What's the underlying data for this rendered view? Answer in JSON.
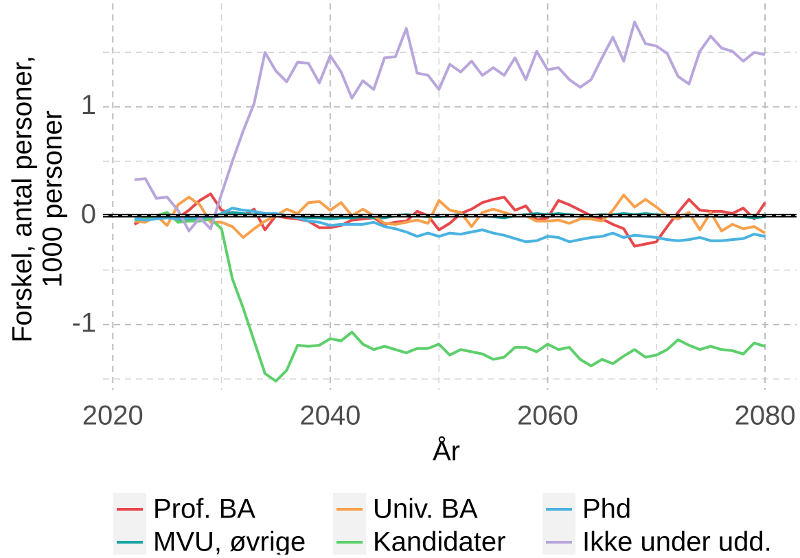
{
  "chart_data": {
    "type": "line",
    "xlabel": "År",
    "ylabel": [
      "Forskel, antal personer,",
      "1000 personer"
    ],
    "x": [
      2022,
      2023,
      2024,
      2025,
      2026,
      2027,
      2028,
      2029,
      2030,
      2031,
      2032,
      2033,
      2034,
      2035,
      2036,
      2037,
      2038,
      2039,
      2040,
      2041,
      2042,
      2043,
      2044,
      2045,
      2046,
      2047,
      2048,
      2049,
      2050,
      2051,
      2052,
      2053,
      2054,
      2055,
      2056,
      2057,
      2058,
      2059,
      2060,
      2061,
      2062,
      2063,
      2064,
      2065,
      2066,
      2067,
      2068,
      2069,
      2070,
      2071,
      2072,
      2073,
      2074,
      2075,
      2076,
      2077,
      2078,
      2079,
      2080
    ],
    "xlim": [
      2019.1,
      2082.9
    ],
    "xticks": [
      2020,
      2040,
      2060,
      2080
    ],
    "xminorticks": [
      2030,
      2050,
      2070
    ],
    "ylim": [
      -1.6,
      1.95
    ],
    "yticks": [
      -1,
      0,
      1
    ],
    "yminorticks": [
      -1.5,
      -0.5,
      0.5,
      1.5
    ],
    "hline": 0,
    "grid": true,
    "legend": "bottom",
    "series": [
      {
        "name": "Prof. BA",
        "color": "#e8484b",
        "values": [
          -0.08,
          -0.02,
          -0.02,
          0.02,
          -0.02,
          0.05,
          0.14,
          0.2,
          0.05,
          0.02,
          0.0,
          0.06,
          -0.13,
          0.0,
          -0.02,
          -0.03,
          -0.05,
          -0.11,
          -0.11,
          -0.09,
          -0.04,
          -0.03,
          -0.02,
          -0.08,
          -0.06,
          -0.05,
          0.04,
          0.0,
          -0.13,
          -0.07,
          0.02,
          0.06,
          0.12,
          0.15,
          0.17,
          0.05,
          0.09,
          -0.04,
          -0.02,
          0.14,
          0.1,
          0.05,
          0.0,
          -0.03,
          -0.08,
          -0.12,
          -0.28,
          -0.26,
          -0.24,
          -0.1,
          0.03,
          0.15,
          0.05,
          0.04,
          0.04,
          0.02,
          0.07,
          -0.03,
          0.12
        ]
      },
      {
        "name": "MVU, øvrige",
        "color": "#1aa5a5",
        "values": [
          -0.03,
          -0.03,
          -0.02,
          -0.01,
          -0.04,
          -0.03,
          -0.02,
          -0.02,
          0.0,
          0.03,
          0.02,
          0.01,
          0.0,
          0.01,
          0.0,
          -0.01,
          -0.02,
          -0.02,
          -0.03,
          -0.02,
          -0.02,
          -0.01,
          -0.02,
          -0.02,
          0.0,
          0.01,
          0.0,
          -0.01,
          -0.01,
          0.0,
          0.01,
          0.0,
          0.0,
          -0.01,
          -0.02,
          0.0,
          0.01,
          0.02,
          0.01,
          0.02,
          0.01,
          0.0,
          0.0,
          0.01,
          0.01,
          0.02,
          0.01,
          0.02,
          0.01,
          0.0,
          0.0,
          0.01,
          0.0,
          0.0,
          -0.01,
          0.0,
          -0.01,
          -0.02,
          -0.01
        ]
      },
      {
        "name": "Univ. BA",
        "color": "#f8a04c",
        "values": [
          -0.05,
          -0.06,
          0.0,
          -0.09,
          0.1,
          0.17,
          0.1,
          -0.06,
          -0.06,
          -0.1,
          -0.2,
          -0.12,
          -0.05,
          0.0,
          0.06,
          0.02,
          0.12,
          0.13,
          0.05,
          0.12,
          0.0,
          0.06,
          0.0,
          -0.07,
          -0.08,
          -0.06,
          -0.04,
          -0.07,
          0.14,
          0.05,
          0.03,
          -0.1,
          0.03,
          0.06,
          0.03,
          0.0,
          0.0,
          -0.05,
          -0.05,
          -0.04,
          -0.07,
          -0.03,
          -0.03,
          -0.05,
          0.05,
          0.19,
          0.08,
          0.15,
          0.08,
          0.0,
          -0.03,
          0.03,
          -0.13,
          0.03,
          -0.14,
          -0.08,
          -0.12,
          -0.1,
          -0.16
        ]
      },
      {
        "name": "Kandidater",
        "color": "#5dcf6b",
        "values": [
          -0.04,
          -0.03,
          0.0,
          0.03,
          -0.06,
          -0.05,
          -0.05,
          -0.03,
          -0.12,
          -0.58,
          -0.85,
          -1.15,
          -1.45,
          -1.52,
          -1.42,
          -1.19,
          -1.2,
          -1.19,
          -1.13,
          -1.15,
          -1.07,
          -1.18,
          -1.23,
          -1.2,
          -1.23,
          -1.26,
          -1.22,
          -1.22,
          -1.18,
          -1.28,
          -1.23,
          -1.25,
          -1.27,
          -1.32,
          -1.3,
          -1.21,
          -1.21,
          -1.25,
          -1.18,
          -1.23,
          -1.21,
          -1.32,
          -1.38,
          -1.32,
          -1.36,
          -1.29,
          -1.23,
          -1.3,
          -1.28,
          -1.23,
          -1.14,
          -1.19,
          -1.23,
          -1.2,
          -1.23,
          -1.24,
          -1.27,
          -1.17,
          -1.2
        ]
      },
      {
        "name": "Phd",
        "color": "#4ab3e0",
        "values": [
          -0.03,
          -0.04,
          -0.03,
          -0.02,
          -0.03,
          -0.02,
          -0.02,
          -0.01,
          0.02,
          0.07,
          0.05,
          0.04,
          0.02,
          0.02,
          0.0,
          -0.02,
          -0.05,
          -0.06,
          -0.09,
          -0.08,
          -0.08,
          -0.08,
          -0.06,
          -0.1,
          -0.12,
          -0.15,
          -0.19,
          -0.16,
          -0.19,
          -0.16,
          -0.17,
          -0.15,
          -0.13,
          -0.16,
          -0.18,
          -0.21,
          -0.24,
          -0.23,
          -0.19,
          -0.2,
          -0.24,
          -0.22,
          -0.2,
          -0.19,
          -0.16,
          -0.2,
          -0.18,
          -0.19,
          -0.2,
          -0.22,
          -0.23,
          -0.22,
          -0.2,
          -0.23,
          -0.23,
          -0.22,
          -0.21,
          -0.17,
          -0.19
        ]
      },
      {
        "name": "Ikke under udd.",
        "color": "#b8a6dc",
        "values": [
          0.33,
          0.34,
          0.16,
          0.17,
          0.05,
          -0.14,
          -0.02,
          -0.12,
          0.2,
          0.5,
          0.78,
          1.03,
          1.5,
          1.33,
          1.23,
          1.41,
          1.4,
          1.22,
          1.47,
          1.32,
          1.08,
          1.24,
          1.16,
          1.45,
          1.46,
          1.72,
          1.31,
          1.29,
          1.16,
          1.39,
          1.32,
          1.42,
          1.29,
          1.36,
          1.29,
          1.45,
          1.25,
          1.51,
          1.34,
          1.36,
          1.25,
          1.18,
          1.25,
          1.45,
          1.64,
          1.42,
          1.78,
          1.58,
          1.56,
          1.49,
          1.28,
          1.21,
          1.51,
          1.65,
          1.54,
          1.51,
          1.42,
          1.5,
          1.48
        ]
      }
    ]
  }
}
